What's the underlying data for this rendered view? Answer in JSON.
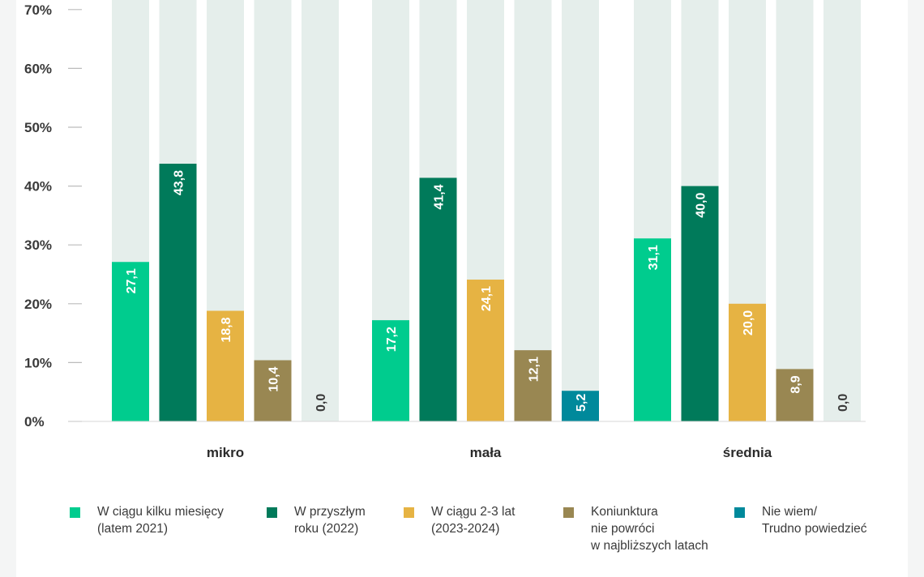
{
  "chart_data": {
    "type": "bar",
    "title": "",
    "xlabel": "",
    "ylabel": "",
    "ylim": [
      0,
      70
    ],
    "y_ticks": [
      "0%",
      "10%",
      "20%",
      "30%",
      "40%",
      "50%",
      "60%",
      "70%"
    ],
    "y_tick_values": [
      0,
      10,
      20,
      30,
      40,
      50,
      60,
      70
    ],
    "grid": false,
    "legend_position": "bottom",
    "categories": [
      "mikro",
      "mała",
      "średnia"
    ],
    "series": [
      {
        "name": "W ciągu kilku miesięcy (latem 2021)",
        "legend_lines": [
          "W ciągu kilku miesięcy",
          "(latem 2021)"
        ],
        "color": "#00cc8e",
        "values": [
          27.1,
          17.2,
          31.1
        ],
        "labels": [
          "27,1",
          "17,2",
          "31,1"
        ]
      },
      {
        "name": "W przyszłym roku (2022)",
        "legend_lines": [
          "W przyszłym",
          "roku (2022)"
        ],
        "color": "#007a5a",
        "values": [
          43.8,
          41.4,
          40.0
        ],
        "labels": [
          "43,8",
          "41,4",
          "40,0"
        ]
      },
      {
        "name": "W ciągu 2-3 lat (2023-2024)",
        "legend_lines": [
          "W ciągu 2-3 lat",
          "(2023-2024)"
        ],
        "color": "#e6b343",
        "values": [
          18.8,
          24.1,
          20.0
        ],
        "labels": [
          "18,8",
          "24,1",
          "20,0"
        ]
      },
      {
        "name": "Koniunktura nie powróci w najbliższych latach",
        "legend_lines": [
          "Koniunktura",
          "nie powróci",
          "w najbliższych latach"
        ],
        "color": "#998752",
        "values": [
          10.4,
          12.1,
          8.9
        ],
        "labels": [
          "10,4",
          "12,1",
          "8,9"
        ]
      },
      {
        "name": "Nie wiem/ Trudno powiedzieć",
        "legend_lines": [
          "Nie wiem/",
          "Trudno powiedzieć"
        ],
        "color": "#00899b",
        "values": [
          0.0,
          5.2,
          0.0
        ],
        "labels": [
          "0,0",
          "5,2",
          "0,0"
        ]
      }
    ],
    "background_bar_color": "#e5eeeb"
  }
}
